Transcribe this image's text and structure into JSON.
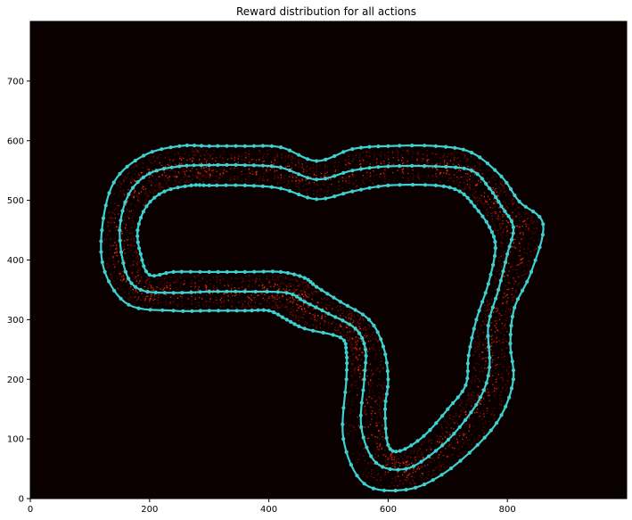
{
  "chart_data": {
    "type": "scatter",
    "title": "Reward distribution for all actions",
    "xlabel": "",
    "ylabel": "",
    "xlim": [
      0,
      1000
    ],
    "ylim": [
      0,
      800
    ],
    "xticks": [
      0,
      200,
      400,
      600,
      800
    ],
    "yticks": [
      0,
      100,
      200,
      300,
      400,
      500,
      600,
      700
    ],
    "grid": false,
    "legend": "none",
    "colors": {
      "background": "#0a0000",
      "waypoints": "#3fd0d0",
      "heat_hot": "#ff3010",
      "heat_warm": "#b01000"
    },
    "track": {
      "center": [
        [
          360,
          559
        ],
        [
          420,
          555
        ],
        [
          480,
          535
        ],
        [
          540,
          550
        ],
        [
          600,
          557
        ],
        [
          680,
          557
        ],
        [
          740,
          550
        ],
        [
          770,
          520
        ],
        [
          790,
          490
        ],
        [
          810,
          455
        ],
        [
          800,
          410
        ],
        [
          785,
          350
        ],
        [
          768,
          290
        ],
        [
          770,
          220
        ],
        [
          755,
          170
        ],
        [
          720,
          120
        ],
        [
          680,
          80
        ],
        [
          630,
          50
        ],
        [
          580,
          60
        ],
        [
          555,
          120
        ],
        [
          560,
          200
        ],
        [
          562,
          250
        ],
        [
          545,
          285
        ],
        [
          500,
          310
        ],
        [
          460,
          330
        ],
        [
          430,
          345
        ],
        [
          360,
          347
        ],
        [
          300,
          347
        ],
        [
          240,
          345
        ],
        [
          185,
          350
        ],
        [
          160,
          380
        ],
        [
          150,
          450
        ],
        [
          165,
          510
        ],
        [
          200,
          545
        ],
        [
          250,
          557
        ],
        [
          300,
          559
        ],
        [
          360,
          559
        ]
      ],
      "outer": [
        [
          360,
          591
        ],
        [
          420,
          589
        ],
        [
          480,
          566
        ],
        [
          540,
          586
        ],
        [
          600,
          591
        ],
        [
          680,
          591
        ],
        [
          740,
          580
        ],
        [
          790,
          540
        ],
        [
          820,
          498
        ],
        [
          860,
          460
        ],
        [
          840,
          380
        ],
        [
          812,
          320
        ],
        [
          805,
          260
        ],
        [
          810,
          200
        ],
        [
          790,
          140
        ],
        [
          750,
          90
        ],
        [
          690,
          40
        ],
        [
          630,
          15
        ],
        [
          560,
          25
        ],
        [
          525,
          100
        ],
        [
          530,
          200
        ],
        [
          530,
          245
        ],
        [
          520,
          270
        ],
        [
          460,
          285
        ],
        [
          430,
          300
        ],
        [
          400,
          315
        ],
        [
          360,
          315
        ],
        [
          300,
          315
        ],
        [
          240,
          315
        ],
        [
          165,
          325
        ],
        [
          125,
          380
        ],
        [
          120,
          450
        ],
        [
          140,
          530
        ],
        [
          190,
          575
        ],
        [
          250,
          591
        ],
        [
          300,
          591
        ],
        [
          360,
          591
        ]
      ],
      "inner": [
        [
          360,
          525
        ],
        [
          420,
          520
        ],
        [
          480,
          502
        ],
        [
          540,
          515
        ],
        [
          600,
          525
        ],
        [
          680,
          525
        ],
        [
          720,
          515
        ],
        [
          745,
          490
        ],
        [
          770,
          455
        ],
        [
          780,
          420
        ],
        [
          768,
          360
        ],
        [
          748,
          300
        ],
        [
          735,
          240
        ],
        [
          730,
          190
        ],
        [
          700,
          150
        ],
        [
          660,
          105
        ],
        [
          620,
          80
        ],
        [
          600,
          90
        ],
        [
          595,
          150
        ],
        [
          600,
          200
        ],
        [
          592,
          255
        ],
        [
          568,
          300
        ],
        [
          520,
          330
        ],
        [
          480,
          355
        ],
        [
          460,
          370
        ],
        [
          420,
          380
        ],
        [
          360,
          380
        ],
        [
          300,
          380
        ],
        [
          240,
          380
        ],
        [
          200,
          375
        ],
        [
          185,
          410
        ],
        [
          180,
          450
        ],
        [
          195,
          490
        ],
        [
          225,
          515
        ],
        [
          270,
          525
        ],
        [
          300,
          525
        ],
        [
          360,
          525
        ]
      ]
    }
  }
}
